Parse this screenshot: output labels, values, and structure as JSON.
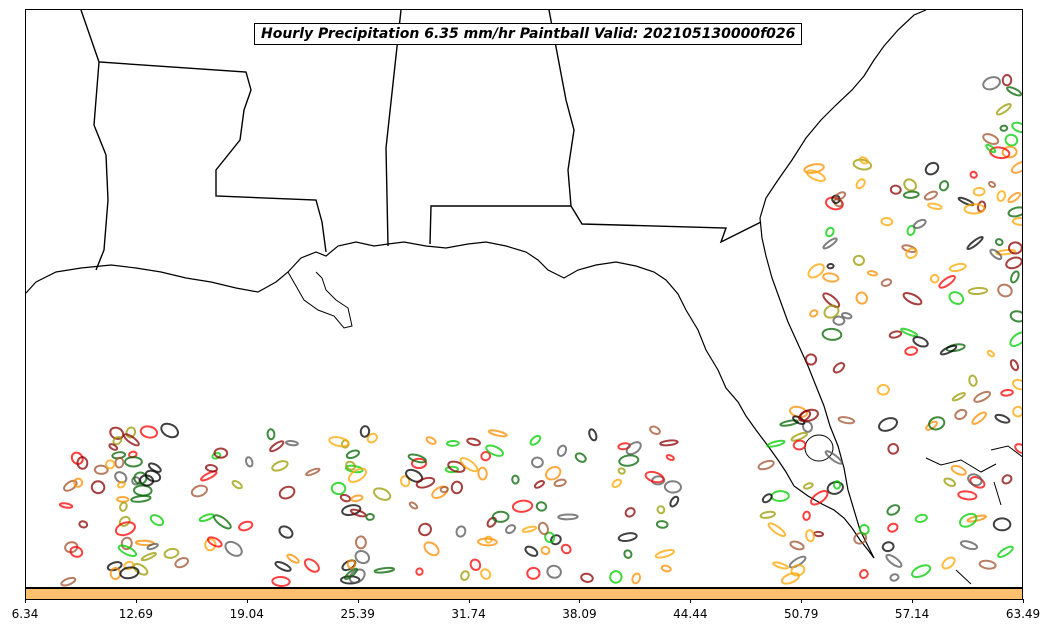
{
  "title": "Hourly Precipitation 6.35 mm/hr Paintball Valid: 202105130000f026",
  "colorbar": {
    "color": "#fdc06e",
    "ticks": [
      "6.34",
      "12.69",
      "19.04",
      "25.39",
      "31.74",
      "38.09",
      "44.44",
      "50.79",
      "57.14",
      "63.49"
    ]
  },
  "paintball_colors": [
    "#ff0000",
    "#8b0000",
    "#ff8c00",
    "#ffa500",
    "#00cc00",
    "#006400",
    "#9a9a00",
    "#000000",
    "#555555",
    "#a0522d"
  ]
}
